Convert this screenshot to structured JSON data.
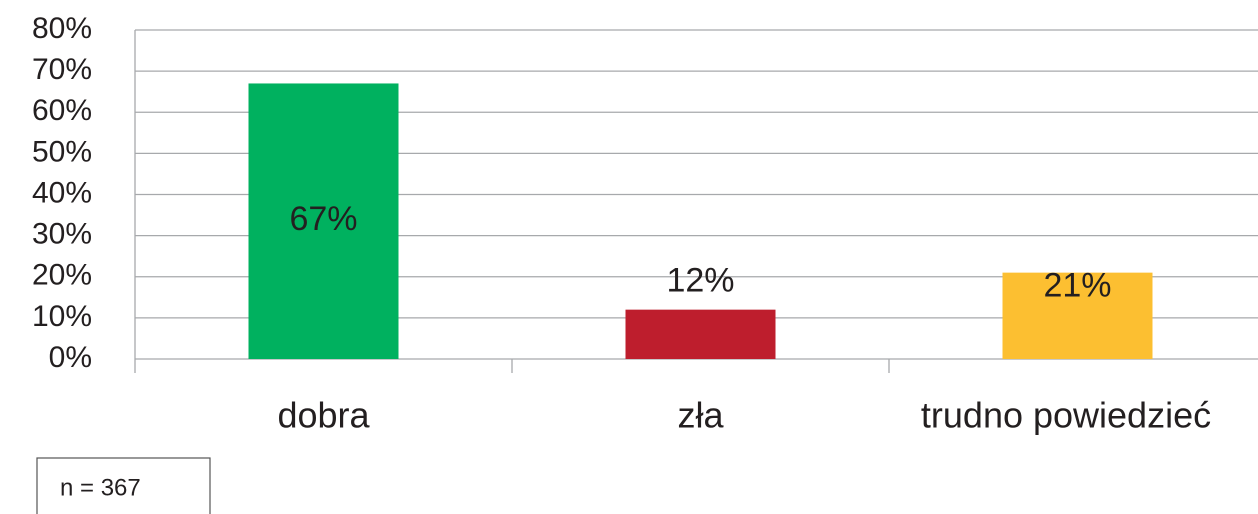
{
  "chart_data": {
    "type": "bar",
    "categories": [
      "dobra",
      "zła",
      "trudno powiedzieć"
    ],
    "values": [
      67,
      12,
      21
    ],
    "value_labels": [
      "67%",
      "12%",
      "21%"
    ],
    "colors": [
      "#00b15f",
      "#be1e2d",
      "#fcbf31"
    ],
    "ylim": [
      0,
      80
    ],
    "yticks": [
      {
        "value": 0,
        "label": "0%"
      },
      {
        "value": 10,
        "label": "10%"
      },
      {
        "value": 20,
        "label": "20%"
      },
      {
        "value": 30,
        "label": "30%"
      },
      {
        "value": 40,
        "label": "40%"
      },
      {
        "value": 50,
        "label": "50%"
      },
      {
        "value": 60,
        "label": "60%"
      },
      {
        "value": 70,
        "label": "70%"
      },
      {
        "value": 80,
        "label": "80%"
      }
    ],
    "grid": true,
    "annotation": "n = 367"
  }
}
